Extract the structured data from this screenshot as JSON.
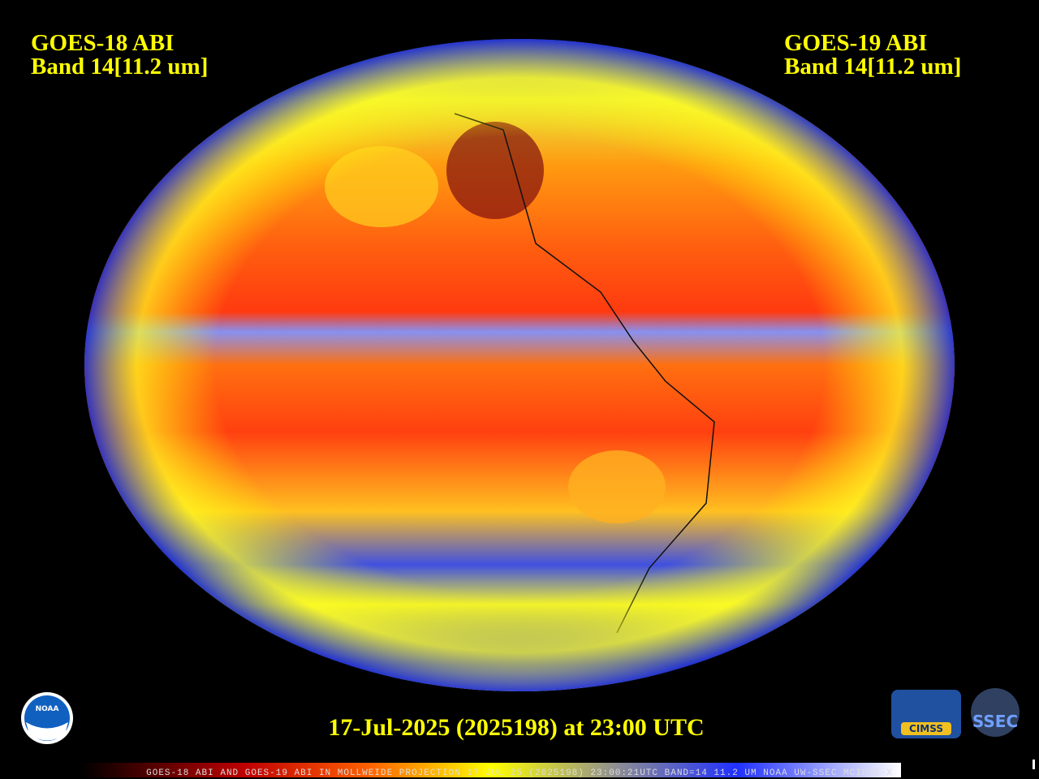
{
  "header": {
    "left": {
      "line1": "GOES-18 ABI",
      "line2": "Band 14[11.2 um]"
    },
    "right": {
      "line1": "GOES-19 ABI",
      "line2": "Band 14[11.2 um]"
    }
  },
  "caption": "17-Jul-2025 (2025198) at 23:00 UTC",
  "footer": "GOES-18 ABI AND GOES-19 ABI IN MOLLWEIDE PROJECTION 17 JUL 25 (2025198) 23:00:21UTC BAND=14 11.2 UM NOAA UW-SSEC MCIDAS-X",
  "logos": {
    "noaa": "NOAA",
    "cimss": "CIMSS",
    "ssec": "SSEC"
  }
}
